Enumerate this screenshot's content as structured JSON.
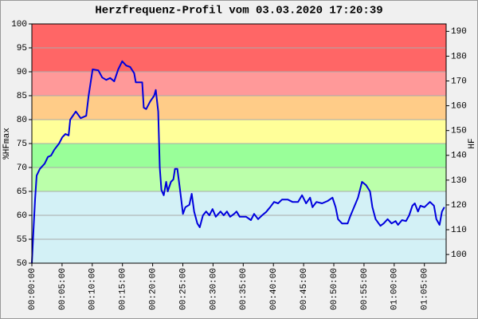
{
  "chart_data": {
    "type": "line",
    "title": "Herzfrequenz-Profil vom 03.03.2020 17:20:39",
    "y_label": "%HFmax",
    "y2_label": "HF",
    "color": "#0000dd",
    "bands": [
      {
        "from": 50,
        "to": 65,
        "color": "#d3f1f6"
      },
      {
        "from": 65,
        "to": 70,
        "color": "#bbffaa"
      },
      {
        "from": 70,
        "to": 75,
        "color": "#99ff99"
      },
      {
        "from": 75,
        "to": 80,
        "color": "#ffff99"
      },
      {
        "from": 80,
        "to": 85,
        "color": "#ffcc88"
      },
      {
        "from": 85,
        "to": 90,
        "color": "#ff9999"
      },
      {
        "from": 90,
        "to": 100,
        "color": "#ff6666"
      }
    ],
    "grid": true,
    "xlim": [
      0,
      68.6
    ],
    "xticks": [
      {
        "value": 0,
        "label": "00:00:00"
      },
      {
        "value": 5,
        "label": "00:05:00"
      },
      {
        "value": 10,
        "label": "00:10:00"
      },
      {
        "value": 15,
        "label": "00:15:00"
      },
      {
        "value": 20,
        "label": "00:20:00"
      },
      {
        "value": 25,
        "label": "00:25:00"
      },
      {
        "value": 30,
        "label": "00:30:00"
      },
      {
        "value": 35,
        "label": "00:35:00"
      },
      {
        "value": 40,
        "label": "00:40:00"
      },
      {
        "value": 45,
        "label": "00:45:00"
      },
      {
        "value": 50,
        "label": "00:50:00"
      },
      {
        "value": 55,
        "label": "00:55:00"
      },
      {
        "value": 60,
        "label": "01:00:00"
      },
      {
        "value": 65,
        "label": "01:05:00"
      }
    ],
    "ylim": [
      50,
      100
    ],
    "yticks": [
      50,
      55,
      60,
      65,
      70,
      75,
      80,
      85,
      90,
      95,
      100
    ],
    "y2lim": [
      96.5,
      193
    ],
    "y2ticks": [
      100,
      110,
      120,
      130,
      140,
      150,
      160,
      170,
      180,
      190
    ],
    "x": [
      0,
      0.26,
      0.53,
      0.79,
      1.32,
      2.12,
      2.65,
      3.18,
      3.71,
      4.5,
      5.03,
      5.56,
      6.09,
      6.35,
      7.28,
      8.08,
      9.0,
      9.4,
      10.06,
      11.0,
      11.65,
      12.31,
      12.97,
      13.63,
      14.3,
      14.96,
      15.62,
      16.28,
      16.94,
      17.21,
      18.27,
      18.53,
      18.93,
      19.59,
      20.25,
      20.52,
      20.92,
      21.18,
      21.45,
      21.84,
      22.24,
      22.5,
      23.03,
      23.43,
      23.7,
      24.09,
      24.49,
      25.02,
      25.42,
      26.08,
      26.47,
      26.87,
      27.4,
      27.8,
      28.33,
      28.86,
      29.39,
      29.92,
      30.45,
      31.24,
      31.77,
      32.3,
      32.83,
      33.49,
      33.89,
      34.42,
      35.48,
      36.27,
      36.8,
      37.46,
      38.12,
      38.79,
      39.45,
      40.11,
      40.77,
      41.43,
      42.36,
      43.16,
      44.08,
      44.74,
      45.41,
      46.07,
      46.47,
      47.13,
      48.05,
      48.98,
      49.78,
      50.3,
      50.7,
      51.36,
      52.29,
      52.69,
      53.35,
      54.01,
      54.67,
      55.34,
      56.0,
      56.39,
      56.92,
      57.72,
      58.25,
      58.91,
      59.57,
      60.23,
      60.63,
      61.29,
      61.95,
      62.48,
      63.01,
      63.41,
      63.94,
      64.34,
      65.0,
      65.92,
      66.59,
      66.98,
      67.51,
      67.91,
      68.31
    ],
    "values": [
      50,
      56.7,
      63.3,
      68.3,
      69.7,
      70.8,
      72.2,
      72.5,
      73.7,
      75,
      76.3,
      77,
      76.7,
      80,
      81.7,
      80.3,
      80.8,
      85,
      90.5,
      90.3,
      88.8,
      88.3,
      88.7,
      88,
      90.5,
      92.2,
      91.3,
      91,
      89.7,
      87.8,
      87.8,
      82.5,
      82.2,
      83.8,
      85,
      86.2,
      81.7,
      70,
      65.3,
      64.2,
      67,
      65,
      67,
      67.5,
      69.7,
      69.7,
      65.8,
      60.3,
      61.7,
      62.2,
      64.5,
      60.8,
      58.3,
      57.5,
      60,
      60.8,
      60,
      61.3,
      59.7,
      60.8,
      60,
      60.8,
      59.7,
      60.3,
      60.8,
      59.7,
      59.7,
      59,
      60.3,
      59.2,
      60,
      60.7,
      61.7,
      62.8,
      62.5,
      63.3,
      63.3,
      62.8,
      62.8,
      64.2,
      62.5,
      63.7,
      61.7,
      62.8,
      62.5,
      63,
      63.7,
      61.7,
      59.2,
      58.3,
      58.3,
      59.7,
      61.7,
      63.7,
      67,
      66.3,
      65,
      61.7,
      59.2,
      57.8,
      58.3,
      59.2,
      58.3,
      58.8,
      58,
      59,
      58.8,
      60,
      62,
      62.5,
      60.8,
      62,
      61.7,
      62.8,
      62,
      59.2,
      58,
      60.8,
      61.7
    ]
  }
}
